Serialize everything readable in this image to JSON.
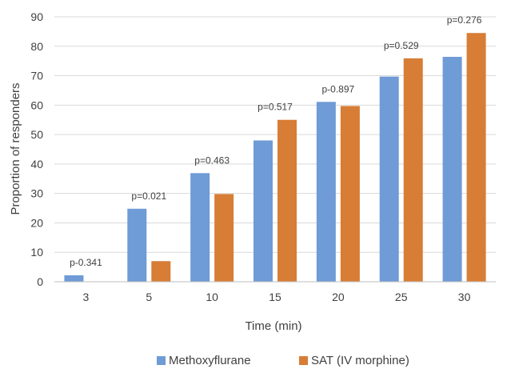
{
  "chart_data": {
    "type": "bar",
    "title": "",
    "xlabel": "Time (min)",
    "ylabel": "Proportion of responders",
    "categories": [
      "3",
      "5",
      "10",
      "15",
      "20",
      "25",
      "30"
    ],
    "ylim": [
      0,
      90
    ],
    "yticks": [
      0,
      10,
      20,
      30,
      40,
      50,
      60,
      70,
      80,
      90
    ],
    "yticklabels": [
      "0",
      "10",
      "20",
      "30",
      "40",
      "50",
      "60",
      "70",
      "80",
      "90"
    ],
    "grid": true,
    "legend_position": "bottom",
    "series": [
      {
        "name": "Methoxyflurane",
        "color": "#6f9bd6",
        "values": [
          2.2,
          24.8,
          36.9,
          48.0,
          61.1,
          69.7,
          76.4
        ]
      },
      {
        "name": "SAT (IV morphine)",
        "color": "#d77d36",
        "values": [
          0,
          7.0,
          29.8,
          55.0,
          59.7,
          75.9,
          84.5
        ]
      }
    ],
    "annotations": [
      "p-0.341",
      "p=0.021",
      "p=0.463",
      "p=0.517",
      "p-0.897",
      "p=0.529",
      "p=0.276"
    ]
  }
}
